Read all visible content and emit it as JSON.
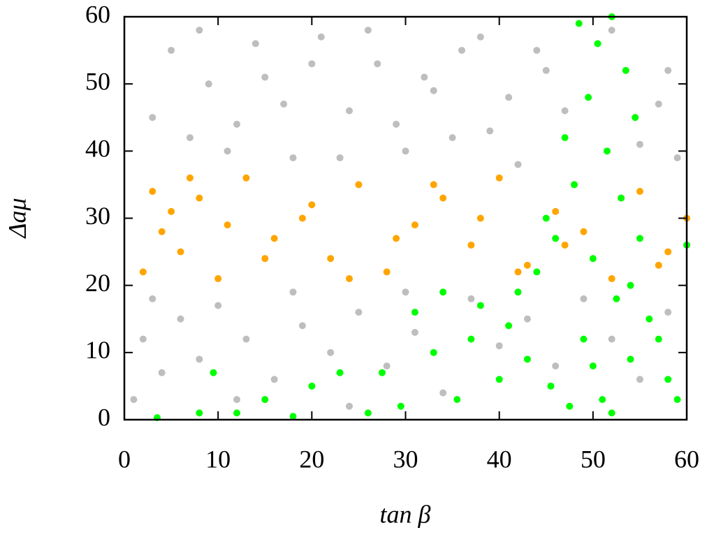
{
  "chart_data": {
    "type": "scatter",
    "xlabel": "tan β",
    "ylabel": "Δaμ",
    "xlim": [
      0,
      60
    ],
    "ylim": [
      0,
      60
    ],
    "xticks": [
      0,
      10,
      20,
      30,
      40,
      50,
      60
    ],
    "yticks": [
      0,
      10,
      20,
      30,
      40,
      50,
      60
    ],
    "series": [
      {
        "color": "#bebebe",
        "x": [
          1,
          2,
          3,
          4,
          6,
          8,
          10,
          13,
          16,
          19,
          22,
          25,
          28,
          31,
          34,
          37,
          40,
          3,
          5,
          7,
          8,
          9,
          11,
          14,
          17,
          20,
          23,
          26,
          29,
          32,
          35,
          38,
          41,
          44,
          47,
          52,
          55,
          58,
          12,
          15,
          18,
          21,
          24,
          27,
          30,
          33,
          36,
          39,
          42,
          45,
          57,
          59,
          43,
          46,
          49,
          52,
          55,
          58,
          12,
          18,
          24,
          30
        ],
        "y": [
          3,
          12,
          18,
          7,
          15,
          9,
          17,
          12,
          6,
          14,
          10,
          16,
          8,
          13,
          4,
          18,
          11,
          45,
          55,
          42,
          58,
          50,
          40,
          56,
          47,
          53,
          39,
          58,
          44,
          51,
          42,
          57,
          48,
          55,
          46,
          58,
          41,
          52,
          44,
          51,
          39,
          57,
          46,
          53,
          40,
          49,
          55,
          43,
          38,
          52,
          47,
          39,
          15,
          8,
          18,
          12,
          6,
          16,
          3,
          19,
          2,
          19
        ]
      },
      {
        "color": "#ffa500",
        "x": [
          2,
          3,
          4,
          5,
          6,
          8,
          10,
          13,
          16,
          19,
          22,
          25,
          28,
          31,
          34,
          37,
          40,
          43,
          46,
          49,
          52,
          55,
          58,
          60,
          7,
          11,
          15,
          20,
          24,
          29,
          33,
          38,
          42,
          47,
          53,
          57
        ],
        "y": [
          22,
          34,
          28,
          31,
          25,
          33,
          21,
          36,
          27,
          30,
          24,
          35,
          22,
          29,
          33,
          26,
          36,
          23,
          31,
          28,
          21,
          34,
          25,
          30,
          36,
          29,
          24,
          32,
          21,
          27,
          35,
          30,
          22,
          26,
          33,
          23
        ]
      },
      {
        "color": "#00ff00",
        "x": [
          3.5,
          8,
          9.5,
          12,
          15,
          18,
          20,
          23,
          26,
          27.5,
          29.5,
          31,
          33,
          34,
          35.5,
          37,
          38,
          40,
          41,
          42,
          43,
          44,
          45,
          45.5,
          46,
          47,
          48,
          48.5,
          49,
          49.5,
          50,
          50.5,
          51,
          51.5,
          52,
          52.5,
          53,
          53.5,
          54,
          54.5,
          55,
          56,
          57,
          58,
          59,
          60,
          47.5,
          50,
          52,
          54
        ],
        "y": [
          0.3,
          1,
          7,
          1,
          3,
          0.5,
          5,
          7,
          1,
          7,
          2,
          16,
          10,
          19,
          3,
          12,
          17,
          6,
          14,
          19,
          9,
          22,
          30,
          5,
          27,
          42,
          35,
          59,
          12,
          48,
          24,
          56,
          3,
          40,
          60,
          18,
          33,
          52,
          9,
          45,
          27,
          15,
          12,
          6,
          3,
          26,
          2,
          8,
          1,
          20
        ]
      }
    ]
  }
}
